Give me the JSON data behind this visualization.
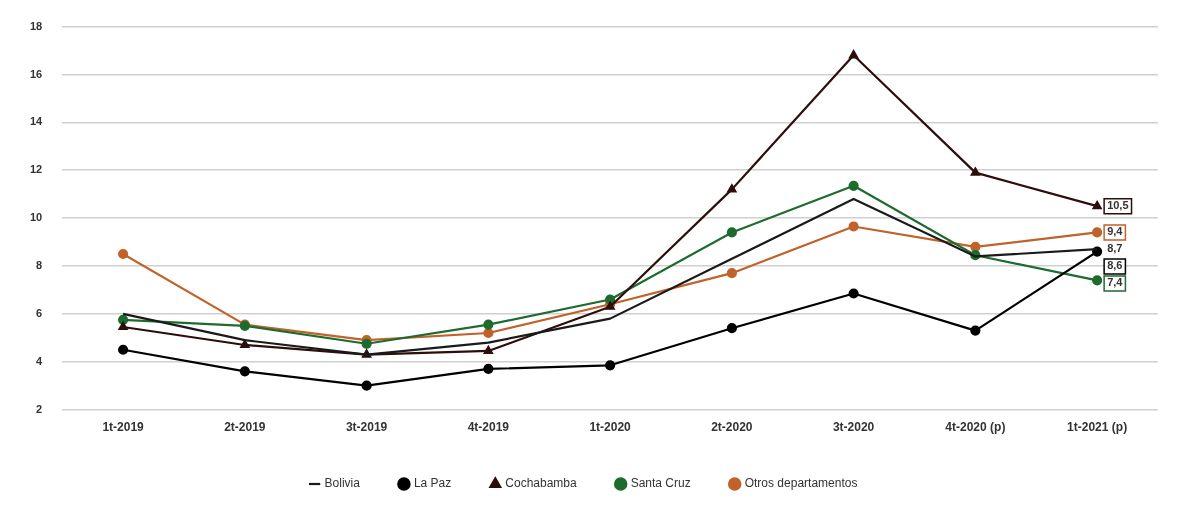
{
  "chart_data": {
    "type": "line",
    "categories": [
      "1t-2019",
      "2t-2019",
      "3t-2019",
      "4t-2019",
      "1t-2020",
      "2t-2020",
      "3t-2020",
      "4t-2020 (p)",
      "1t-2021 (p)"
    ],
    "series": [
      {
        "name": "Bolivia",
        "color": "#1a1a1a",
        "marker": "none",
        "values": [
          6.0,
          4.9,
          4.3,
          4.8,
          5.8,
          8.3,
          10.8,
          8.4,
          8.7
        ],
        "value_labels": [
          null,
          null,
          null,
          null,
          null,
          null,
          null,
          null,
          "8,7"
        ]
      },
      {
        "name": "La Paz",
        "color": "#000000",
        "marker": "circle",
        "values": [
          4.5,
          3.6,
          3.0,
          3.7,
          3.85,
          5.4,
          6.85,
          5.3,
          8.6
        ],
        "value_labels": [
          null,
          null,
          null,
          null,
          null,
          null,
          null,
          null,
          "8,6"
        ]
      },
      {
        "name": "Cochabamba",
        "color": "#2e0d0d",
        "marker": "triangle",
        "values": [
          5.45,
          4.7,
          4.3,
          4.45,
          6.3,
          11.2,
          16.8,
          11.9,
          10.5
        ],
        "value_labels": [
          null,
          null,
          null,
          null,
          null,
          null,
          null,
          null,
          "10,5"
        ]
      },
      {
        "name": "Santa Cruz",
        "color": "#1e6b2e",
        "marker": "circle",
        "values": [
          5.75,
          5.5,
          4.75,
          5.55,
          6.6,
          9.4,
          11.35,
          8.45,
          7.4
        ],
        "value_labels": [
          null,
          null,
          null,
          null,
          null,
          null,
          null,
          null,
          "7,4"
        ]
      },
      {
        "name": "Otros departamentos",
        "color": "#c0622a",
        "marker": "circle",
        "values": [
          8.5,
          5.55,
          4.9,
          5.2,
          6.4,
          7.7,
          9.65,
          8.8,
          9.4
        ],
        "value_labels": [
          null,
          null,
          null,
          null,
          null,
          null,
          null,
          null,
          "9,4"
        ]
      }
    ],
    "ylim": [
      2,
      18
    ],
    "yticks": [
      2,
      4,
      6,
      8,
      10,
      12,
      14,
      16,
      18
    ],
    "grid": "y",
    "legend": "bottom",
    "line_style": "solid"
  }
}
